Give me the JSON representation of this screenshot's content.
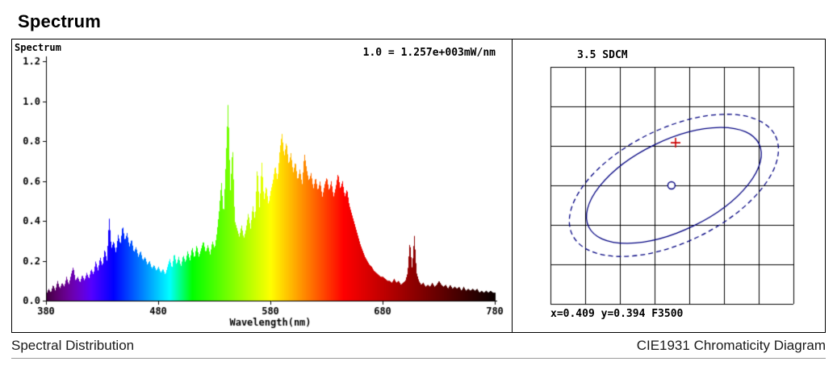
{
  "page": {
    "title": "Spectrum"
  },
  "left_panel": {
    "inner_label": "Spectrum",
    "scale_note": "1.0 = 1.257e+003mW/nm",
    "caption": "Spectral Distribution"
  },
  "right_panel": {
    "sdcm_label": "3.5 SDCM",
    "coords_label": "x=0.409 y=0.394 F3500",
    "caption": "CIE1931 Chromaticity Diagram"
  },
  "colors": {
    "axis": "#000000",
    "grid": "#000000",
    "ellipse": "#000080",
    "marker_plus": "#cc0000",
    "marker_circle": "#000080"
  },
  "chart_data": [
    {
      "type": "area",
      "title": "Spectrum",
      "xlabel": "Wavelength(nm)",
      "ylabel": "",
      "xlim": [
        380,
        780
      ],
      "ylim": [
        0,
        1.2
      ],
      "xticks": [
        380,
        480,
        580,
        680,
        780
      ],
      "yticks": [
        "0.0",
        "0.2",
        "0.4",
        "0.6",
        "0.8",
        "1.0",
        "1.2"
      ],
      "scale_note": "1.0 = 1.257e+003mW/nm",
      "fill": "spectral-wavelength-gradient",
      "x": {
        "start": 380,
        "step": 2,
        "count": 201
      },
      "y": [
        0.03,
        0.06,
        0.04,
        0.08,
        0.05,
        0.1,
        0.06,
        0.09,
        0.07,
        0.12,
        0.08,
        0.13,
        0.17,
        0.1,
        0.12,
        0.09,
        0.13,
        0.1,
        0.14,
        0.11,
        0.16,
        0.13,
        0.2,
        0.15,
        0.22,
        0.17,
        0.26,
        0.2,
        0.42,
        0.26,
        0.3,
        0.24,
        0.33,
        0.28,
        0.38,
        0.3,
        0.34,
        0.27,
        0.31,
        0.24,
        0.27,
        0.22,
        0.25,
        0.2,
        0.22,
        0.18,
        0.2,
        0.16,
        0.18,
        0.15,
        0.17,
        0.14,
        0.16,
        0.13,
        0.17,
        0.21,
        0.16,
        0.24,
        0.18,
        0.22,
        0.17,
        0.23,
        0.19,
        0.25,
        0.2,
        0.27,
        0.21,
        0.28,
        0.22,
        0.26,
        0.3,
        0.24,
        0.28,
        0.23,
        0.3,
        0.26,
        0.34,
        0.45,
        0.6,
        0.42,
        0.7,
        1.0,
        0.55,
        0.78,
        0.4,
        0.36,
        0.32,
        0.38,
        0.31,
        0.36,
        0.44,
        0.36,
        0.48,
        0.4,
        0.68,
        0.46,
        0.7,
        0.5,
        0.58,
        0.48,
        0.55,
        0.6,
        0.68,
        0.6,
        0.75,
        0.84,
        0.72,
        0.8,
        0.68,
        0.74,
        0.64,
        0.7,
        0.6,
        0.66,
        0.58,
        0.74,
        0.66,
        0.6,
        0.64,
        0.56,
        0.62,
        0.55,
        0.6,
        0.52,
        0.58,
        0.62,
        0.55,
        0.6,
        0.52,
        0.57,
        0.64,
        0.56,
        0.6,
        0.52,
        0.56,
        0.48,
        0.44,
        0.4,
        0.36,
        0.32,
        0.28,
        0.25,
        0.22,
        0.2,
        0.18,
        0.17,
        0.15,
        0.14,
        0.13,
        0.12,
        0.12,
        0.11,
        0.1,
        0.1,
        0.09,
        0.11,
        0.09,
        0.1,
        0.08,
        0.09,
        0.1,
        0.14,
        0.3,
        0.16,
        0.33,
        0.14,
        0.1,
        0.08,
        0.09,
        0.07,
        0.08,
        0.07,
        0.09,
        0.07,
        0.08,
        0.1,
        0.08,
        0.07,
        0.08,
        0.06,
        0.08,
        0.06,
        0.07,
        0.06,
        0.07,
        0.05,
        0.07,
        0.05,
        0.06,
        0.05,
        0.06,
        0.05,
        0.06,
        0.04,
        0.05,
        0.04,
        0.05,
        0.04,
        0.05,
        0.04,
        0.04
      ]
    },
    {
      "type": "scatter",
      "title": "3.5 SDCM",
      "sdcm": 3.5,
      "chromaticity": {
        "x": 0.409,
        "y": 0.394,
        "reference": "F3500"
      },
      "grid": {
        "cols": 7,
        "rows": 6
      },
      "ellipses": [
        {
          "style": "solid",
          "cx_f": 0.508,
          "cy_f": 0.5,
          "rx_f": 0.39,
          "ry_f": 0.19,
          "angle_deg": -26
        },
        {
          "style": "dashed",
          "cx_f": 0.508,
          "cy_f": 0.5,
          "rx_f": 0.465,
          "ry_f": 0.24,
          "angle_deg": -26
        }
      ],
      "markers": [
        {
          "shape": "plus",
          "fx": 0.515,
          "fy": 0.32
        },
        {
          "shape": "circle",
          "fx": 0.498,
          "fy": 0.5
        }
      ]
    }
  ]
}
